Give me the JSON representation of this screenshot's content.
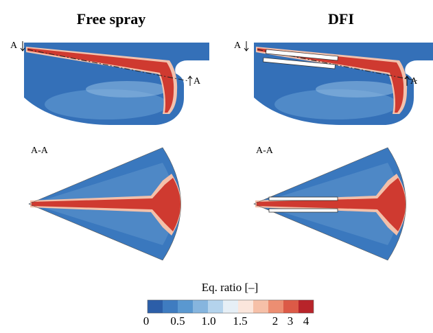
{
  "columns": [
    {
      "title": "Free spray",
      "cut_labels": [
        "A",
        "A"
      ],
      "section_label": "A-A"
    },
    {
      "title": "DFI",
      "cut_labels": [
        "A",
        "A"
      ],
      "section_label": "A-A"
    }
  ],
  "colorbar": {
    "title": "Eq. ratio [–]",
    "tick_labels": [
      "0",
      "0.5",
      "1.0",
      "1.5",
      "2",
      "3",
      "4"
    ]
  }
}
